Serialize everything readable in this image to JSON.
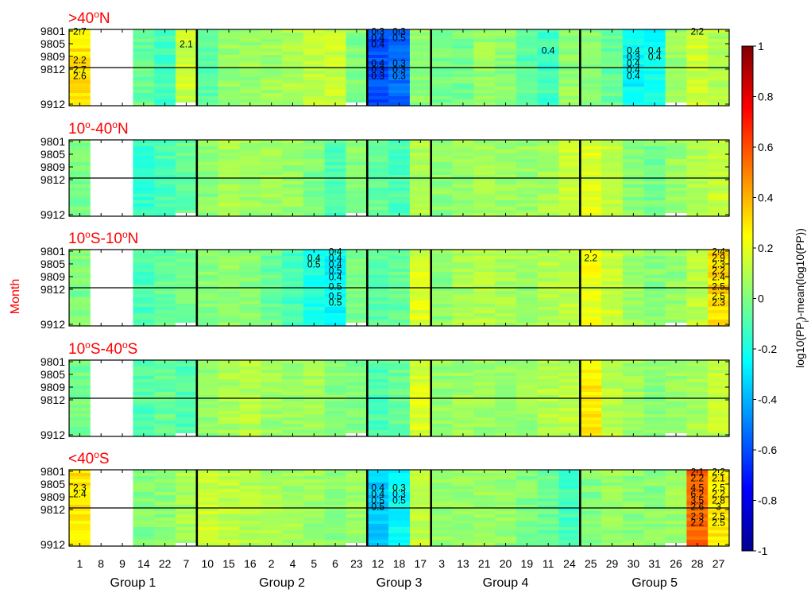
{
  "chart_data": {
    "type": "heatmap",
    "ylabel": "Month",
    "x_tick_labels": [
      "1",
      "8",
      "9",
      "14",
      "22",
      "7",
      "10",
      "15",
      "16",
      "2",
      "4",
      "5",
      "6",
      "23",
      "12",
      "18",
      "17",
      "3",
      "13",
      "21",
      "20",
      "19",
      "11",
      "24",
      "25",
      "29",
      "30",
      "31",
      "26",
      "28",
      "27"
    ],
    "y_tick_labels": [
      "9801",
      "9805",
      "9809",
      "9812",
      "9912"
    ],
    "groups": [
      {
        "name": "Group 1",
        "count": 6
      },
      {
        "name": "Group 2",
        "count": 8
      },
      {
        "name": "Group 3",
        "count": 3
      },
      {
        "name": "Group 4",
        "count": 7
      },
      {
        "name": "Group 5",
        "count": 7
      }
    ],
    "n_months": 24,
    "month_tick_rows": [
      0,
      4,
      8,
      12,
      23
    ],
    "year_divider_after_row": 11,
    "missing_columns": [
      1,
      2
    ],
    "colorbar": {
      "label": "log10(PP_i)-mean(log10(PP))",
      "label_main": "log10(PP",
      "label_sub": "i",
      "label_rest": ")-mean(log10(PP))",
      "range": [
        -1,
        1
      ],
      "ticks": [
        "1",
        "0.8",
        "0.6",
        "0.4",
        "0.2",
        "0",
        "-0.2",
        "-0.4",
        "-0.6",
        "-0.8",
        "-1"
      ],
      "colormap": [
        "#00008f",
        "#0000ff",
        "#0080ff",
        "#00ffff",
        "#80ff80",
        "#ffff00",
        "#ff8000",
        "#ff0000",
        "#800000"
      ]
    },
    "panels": [
      {
        "title": ">40",
        "title_sup": "o",
        "title_tail": "N",
        "column_values": [
          0.3,
          null,
          null,
          -0.05,
          -0.12,
          0.15,
          -0.08,
          0.05,
          0.05,
          0.06,
          0.09,
          0.12,
          0.15,
          0.0,
          -0.6,
          -0.55,
          0.02,
          -0.02,
          -0.02,
          0.05,
          0.02,
          -0.08,
          -0.12,
          0.04,
          0.02,
          -0.05,
          -0.25,
          -0.22,
          0.05,
          0.15,
          0.1
        ],
        "annotations": [
          {
            "col": 0,
            "row": 0,
            "text": "2.7"
          },
          {
            "col": 5,
            "row": 4,
            "text": "2.1"
          },
          {
            "col": 0,
            "row": 9,
            "text": "2.2"
          },
          {
            "col": 0,
            "row": 12,
            "text": "2.7"
          },
          {
            "col": 0,
            "row": 14,
            "text": "2.6"
          },
          {
            "col": 14,
            "row": 0,
            "text": "0.3"
          },
          {
            "col": 15,
            "row": 0,
            "text": "0.3"
          },
          {
            "col": 14,
            "row": 2,
            "text": "0.4"
          },
          {
            "col": 15,
            "row": 2,
            "text": "0.5"
          },
          {
            "col": 14,
            "row": 4,
            "text": "0.4"
          },
          {
            "col": 14,
            "row": 10,
            "text": "0.4"
          },
          {
            "col": 15,
            "row": 10,
            "text": "0.3"
          },
          {
            "col": 14,
            "row": 12,
            "text": "0.3"
          },
          {
            "col": 15,
            "row": 12,
            "text": "0.3"
          },
          {
            "col": 14,
            "row": 14,
            "text": "0.3"
          },
          {
            "col": 15,
            "row": 14,
            "text": "0.3"
          },
          {
            "col": 22,
            "row": 6,
            "text": "0.4"
          },
          {
            "col": 26,
            "row": 6,
            "text": "0.4"
          },
          {
            "col": 27,
            "row": 6,
            "text": "0.4"
          },
          {
            "col": 26,
            "row": 8,
            "text": "0.3"
          },
          {
            "col": 27,
            "row": 8,
            "text": "0.4"
          },
          {
            "col": 26,
            "row": 10,
            "text": "0.4"
          },
          {
            "col": 26,
            "row": 12,
            "text": "0.4"
          },
          {
            "col": 26,
            "row": 14,
            "text": "0.4"
          },
          {
            "col": 29,
            "row": 0,
            "text": "2.2"
          }
        ]
      },
      {
        "title": "10",
        "title_sup": "o",
        "title_tail": "-40",
        "title_sup2": "o",
        "title_tail2": "N",
        "column_values": [
          0.0,
          null,
          null,
          -0.15,
          -0.1,
          -0.05,
          0.02,
          0.08,
          0.05,
          0.06,
          0.05,
          0.0,
          -0.1,
          0.02,
          -0.05,
          -0.1,
          0.1,
          0.02,
          0.05,
          0.06,
          0.05,
          0.05,
          0.08,
          0.15,
          0.18,
          0.12,
          0.02,
          -0.02,
          0.04,
          0.1,
          0.14
        ],
        "annotations": []
      },
      {
        "title": "10",
        "title_sup": "o",
        "title_tail": "S-10",
        "title_sup2": "o",
        "title_tail2": "N",
        "column_values": [
          0.0,
          null,
          null,
          -0.1,
          -0.05,
          -0.02,
          0.02,
          0.05,
          0.02,
          -0.05,
          -0.12,
          -0.2,
          -0.25,
          0.0,
          -0.08,
          -0.05,
          0.18,
          0.02,
          0.08,
          0.1,
          0.08,
          0.06,
          0.1,
          0.12,
          0.22,
          0.15,
          0.05,
          0.02,
          0.04,
          0.12,
          0.32
        ],
        "annotations": [
          {
            "col": 12,
            "row": 0,
            "text": "0.4"
          },
          {
            "col": 11,
            "row": 2,
            "text": "0.4"
          },
          {
            "col": 12,
            "row": 2,
            "text": "0.4"
          },
          {
            "col": 11,
            "row": 4,
            "text": "0.5"
          },
          {
            "col": 12,
            "row": 4,
            "text": "0.4"
          },
          {
            "col": 12,
            "row": 6,
            "text": "0.5"
          },
          {
            "col": 12,
            "row": 8,
            "text": "0.4"
          },
          {
            "col": 12,
            "row": 11,
            "text": "0.5"
          },
          {
            "col": 12,
            "row": 14,
            "text": "0.5"
          },
          {
            "col": 12,
            "row": 16,
            "text": "0.5"
          },
          {
            "col": 24,
            "row": 2,
            "text": "2.2"
          },
          {
            "col": 30,
            "row": 0,
            "text": "2.4"
          },
          {
            "col": 30,
            "row": 2,
            "text": "2.9"
          },
          {
            "col": 30,
            "row": 4,
            "text": "2.3"
          },
          {
            "col": 30,
            "row": 6,
            "text": "2.2"
          },
          {
            "col": 30,
            "row": 8,
            "text": "2.4"
          },
          {
            "col": 30,
            "row": 11,
            "text": "2.5"
          },
          {
            "col": 30,
            "row": 14,
            "text": "2.5"
          },
          {
            "col": 30,
            "row": 16,
            "text": "2.3"
          }
        ]
      },
      {
        "title": "10",
        "title_sup": "o",
        "title_tail": "S-40",
        "title_sup2": "o",
        "title_tail2": "S",
        "column_values": [
          -0.02,
          null,
          null,
          -0.1,
          -0.05,
          -0.1,
          0.02,
          0.08,
          0.1,
          0.06,
          0.05,
          0.06,
          0.02,
          0.0,
          -0.1,
          -0.05,
          0.18,
          0.04,
          0.06,
          0.05,
          0.06,
          0.05,
          0.1,
          0.12,
          0.28,
          0.12,
          0.06,
          0.02,
          0.05,
          0.08,
          0.12
        ],
        "annotations": []
      },
      {
        "title": "<40",
        "title_sup": "o",
        "title_tail": "S",
        "column_values": [
          0.3,
          null,
          null,
          0.0,
          0.02,
          0.08,
          0.15,
          0.12,
          0.1,
          0.08,
          0.06,
          0.05,
          0.02,
          0.05,
          -0.35,
          -0.25,
          0.12,
          0.04,
          0.06,
          0.05,
          0.04,
          0.0,
          -0.05,
          -0.12,
          0.0,
          0.05,
          0.02,
          0.02,
          0.05,
          0.55,
          0.3
        ],
        "annotations": [
          {
            "col": 0,
            "row": 5,
            "text": "2.3"
          },
          {
            "col": 0,
            "row": 7,
            "text": "2.4"
          },
          {
            "col": 14,
            "row": 5,
            "text": "0.4"
          },
          {
            "col": 15,
            "row": 5,
            "text": "0.3"
          },
          {
            "col": 14,
            "row": 7,
            "text": "0.4"
          },
          {
            "col": 15,
            "row": 7,
            "text": "0.3"
          },
          {
            "col": 14,
            "row": 9,
            "text": "0.5"
          },
          {
            "col": 15,
            "row": 9,
            "text": "0.5"
          },
          {
            "col": 14,
            "row": 11,
            "text": "0.5"
          },
          {
            "col": 29,
            "row": 0,
            "text": "2.1"
          },
          {
            "col": 30,
            "row": 0,
            "text": "2.2"
          },
          {
            "col": 29,
            "row": 2,
            "text": "2.2"
          },
          {
            "col": 30,
            "row": 2,
            "text": "2.1"
          },
          {
            "col": 29,
            "row": 5,
            "text": "4.5"
          },
          {
            "col": 30,
            "row": 5,
            "text": "2.5"
          },
          {
            "col": 29,
            "row": 7,
            "text": "6.2"
          },
          {
            "col": 30,
            "row": 7,
            "text": "2.2"
          },
          {
            "col": 29,
            "row": 9,
            "text": "3.5"
          },
          {
            "col": 30,
            "row": 9,
            "text": "2.8"
          },
          {
            "col": 29,
            "row": 11,
            "text": "2.6"
          },
          {
            "col": 30,
            "row": 11,
            "text": "3"
          },
          {
            "col": 29,
            "row": 14,
            "text": "2.3"
          },
          {
            "col": 30,
            "row": 14,
            "text": "2.5"
          },
          {
            "col": 29,
            "row": 16,
            "text": "2.2"
          },
          {
            "col": 30,
            "row": 16,
            "text": "2.5"
          }
        ]
      }
    ]
  }
}
